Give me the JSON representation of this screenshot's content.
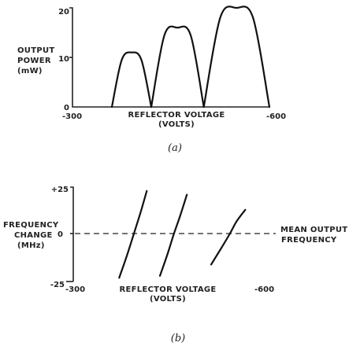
{
  "chart_data": [
    {
      "id": "a",
      "type": "line",
      "caption": "(a)",
      "xlabel": [
        "REFLECTOR VOLTAGE",
        "(VOLTS)"
      ],
      "ylabel": [
        "OUTPUT",
        "POWER",
        "(mW)"
      ],
      "xlim": [
        -300,
        -600
      ],
      "ylim": [
        0,
        20
      ],
      "x_ticks": [
        "-300",
        "-600"
      ],
      "y_ticks": [
        "0",
        "10",
        "20"
      ],
      "series": [
        {
          "x": [
            -360,
            -375,
            -390,
            -405,
            -420
          ],
          "y": [
            0,
            9.5,
            11,
            9.5,
            0
          ]
        },
        {
          "x": [
            -420,
            -440,
            -460,
            -480,
            -500
          ],
          "y": [
            0,
            14.5,
            16,
            14.5,
            0
          ]
        },
        {
          "x": [
            -500,
            -525,
            -550,
            -575,
            -600
          ],
          "y": [
            0,
            18,
            20,
            18,
            0
          ]
        }
      ]
    },
    {
      "id": "b",
      "type": "line",
      "caption": "(b)",
      "xlabel": [
        "REFLECTOR VOLTAGE",
        "(VOLTS)"
      ],
      "ylabel": [
        "FREQUENCY",
        "CHANGE",
        "(MHz)"
      ],
      "xlim": [
        -300,
        -600
      ],
      "ylim": [
        -25,
        25
      ],
      "x_ticks": [
        "-300",
        "-600"
      ],
      "y_ticks": [
        "+25",
        "0",
        "-25"
      ],
      "reference_line": {
        "y": 0,
        "label": [
          "MEAN OUTPUT",
          "FREQUENCY"
        ]
      },
      "series": [
        {
          "x": [
            -370,
            -382,
            -392,
            -402,
            -412
          ],
          "y": [
            -23,
            -11,
            0,
            11,
            23
          ]
        },
        {
          "x": [
            -432,
            -444,
            -453,
            -463,
            -473
          ],
          "y": [
            -22,
            -10,
            0,
            10,
            21
          ]
        },
        {
          "x": [
            -510,
            -526,
            -538,
            -549,
            -562
          ],
          "y": [
            -16,
            -7,
            0,
            7,
            13
          ]
        }
      ]
    }
  ]
}
